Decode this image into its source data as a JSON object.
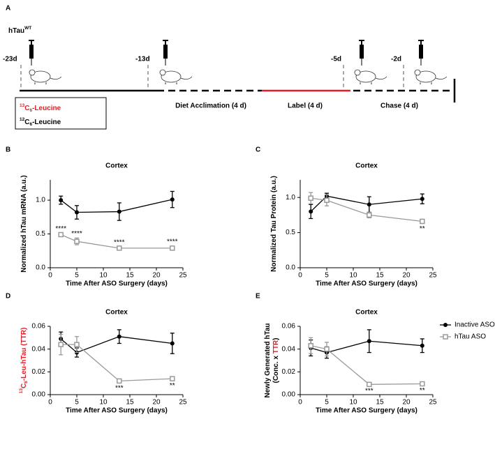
{
  "panel_a": {
    "panel": "A",
    "title": [
      {
        "text": "hTau"
      },
      {
        "text": "WT",
        "style": "sup"
      }
    ],
    "timepoints": [
      "-23d",
      "-13d",
      "-5d",
      "-2d"
    ],
    "stages": [
      {
        "text": "Diet Acclimation (4 d)",
        "color": "#000000"
      },
      {
        "text": "Label (4 d)",
        "color": "#e41e26"
      },
      {
        "text": "Chase (4 d)",
        "color": "#000000"
      }
    ],
    "legend_box": [
      [
        {
          "text": "13",
          "style": "sup",
          "color": "#e41e26"
        },
        {
          "text": "C",
          "color": "#e41e26"
        },
        {
          "text": "6",
          "style": "sub",
          "color": "#e41e26"
        },
        {
          "text": "-Leucine",
          "color": "#e41e26"
        }
      ],
      [
        {
          "text": "12",
          "style": "sup"
        },
        {
          "text": "C"
        },
        {
          "text": "6",
          "style": "sub"
        },
        {
          "text": "-Leucine"
        }
      ]
    ]
  },
  "chart_data": [
    {
      "type": "line",
      "panel": "B",
      "title": "Cortex",
      "ylabel": [
        [
          {
            "text": "Normalized hTau mRNA (a.u.)"
          }
        ]
      ],
      "xlabel": "Time After ASO Surgery (days)",
      "x": [
        2,
        5,
        13,
        23
      ],
      "xlim": [
        0,
        25
      ],
      "xticks": [
        0,
        5,
        10,
        15,
        20,
        25
      ],
      "ylim": [
        0,
        1.3
      ],
      "yticks": [
        {
          "value": 0,
          "label": "0.0"
        },
        0.5,
        {
          "value": 1,
          "label": "1.0"
        }
      ],
      "series": [
        {
          "color": "#000000",
          "marker": "circle",
          "values": [
            1.0,
            0.82,
            0.83,
            1.01
          ],
          "errors": [
            0.06,
            0.1,
            0.13,
            0.12
          ]
        },
        {
          "color": "#999999",
          "marker": "square",
          "values": [
            0.49,
            0.39,
            0.29,
            0.29
          ],
          "errors": [
            0.02,
            0.05,
            0.02,
            0.03
          ],
          "annotations": [
            "****",
            "****",
            "****",
            "****"
          ]
        }
      ]
    },
    {
      "type": "line",
      "panel": "C",
      "title": "Cortex",
      "ylabel": [
        [
          {
            "text": "Normalized Tau Protein (a.u.)"
          }
        ]
      ],
      "xlabel": "Time After ASO Surgery (days)",
      "x": [
        2,
        5,
        13,
        23
      ],
      "xlim": [
        0,
        25
      ],
      "xticks": [
        0,
        5,
        10,
        15,
        20,
        25
      ],
      "ylim": [
        0,
        1.25
      ],
      "yticks": [
        {
          "value": 0,
          "label": "0.0"
        },
        0.5,
        {
          "value": 1,
          "label": "1.0"
        }
      ],
      "series": [
        {
          "color": "#000000",
          "marker": "circle",
          "values": [
            0.8,
            1.02,
            0.9,
            0.98
          ],
          "errors": [
            0.1,
            0.04,
            0.11,
            0.07
          ]
        },
        {
          "color": "#999999",
          "marker": "square",
          "values": [
            0.99,
            0.96,
            0.75,
            0.66
          ],
          "errors": [
            0.08,
            0.08,
            0.04,
            0.03
          ],
          "annotations": [
            null,
            null,
            null,
            "**"
          ]
        }
      ]
    },
    {
      "type": "line",
      "panel": "D",
      "title": "Cortex",
      "ylabel": [
        [
          {
            "text": "13",
            "style": "sup",
            "color": "#e41e26"
          },
          {
            "text": "C",
            "color": "#e41e26"
          },
          {
            "text": "6",
            "style": "sub",
            "color": "#e41e26"
          },
          {
            "text": "-Leu-hTau (TTR)",
            "color": "#e41e26"
          }
        ]
      ],
      "xlabel": "Time After ASO Surgery (days)",
      "x": [
        2,
        5,
        13,
        23
      ],
      "xlim": [
        0,
        25
      ],
      "xticks": [
        0,
        5,
        10,
        15,
        20,
        25
      ],
      "ylim": [
        0,
        0.06
      ],
      "yticks": [
        {
          "value": 0,
          "label": "0.00"
        },
        0.02,
        0.04,
        0.06
      ],
      "series": [
        {
          "color": "#000000",
          "marker": "circle",
          "values": [
            0.049,
            0.037,
            0.051,
            0.045
          ],
          "errors": [
            0.006,
            0.004,
            0.006,
            0.009
          ]
        },
        {
          "color": "#999999",
          "marker": "square",
          "values": [
            0.044,
            0.044,
            0.012,
            0.014
          ],
          "errors": [
            0.009,
            0.007,
            0.0015,
            0.0015
          ],
          "annotations": [
            null,
            null,
            "***",
            "**"
          ]
        }
      ]
    },
    {
      "type": "line",
      "panel": "E",
      "title": "Cortex",
      "ylabel": [
        [
          {
            "text": "Newly Generated hTau"
          }
        ],
        [
          {
            "text": "(Conc. x "
          },
          {
            "text": "TTR",
            "color": "#e41e26"
          },
          {
            "text": ")"
          }
        ]
      ],
      "xlabel": "Time After ASO Surgery (days)",
      "x": [
        2,
        5,
        13,
        23
      ],
      "xlim": [
        0,
        25
      ],
      "xticks": [
        0,
        5,
        10,
        15,
        20,
        25
      ],
      "ylim": [
        0,
        0.06
      ],
      "yticks": [
        {
          "value": 0,
          "label": "0.00"
        },
        0.02,
        0.04,
        0.06
      ],
      "series": [
        {
          "name": "Inactive ASO",
          "color": "#000000",
          "marker": "circle",
          "values": [
            0.041,
            0.037,
            0.047,
            0.043
          ],
          "errors": [
            0.007,
            0.005,
            0.01,
            0.006
          ]
        },
        {
          "name": "hTau ASO",
          "color": "#999999",
          "marker": "square",
          "values": [
            0.043,
            0.04,
            0.009,
            0.0095
          ],
          "errors": [
            0.007,
            0.006,
            0.001,
            0.001
          ],
          "annotations": [
            null,
            null,
            "***",
            "**"
          ]
        }
      ]
    }
  ]
}
